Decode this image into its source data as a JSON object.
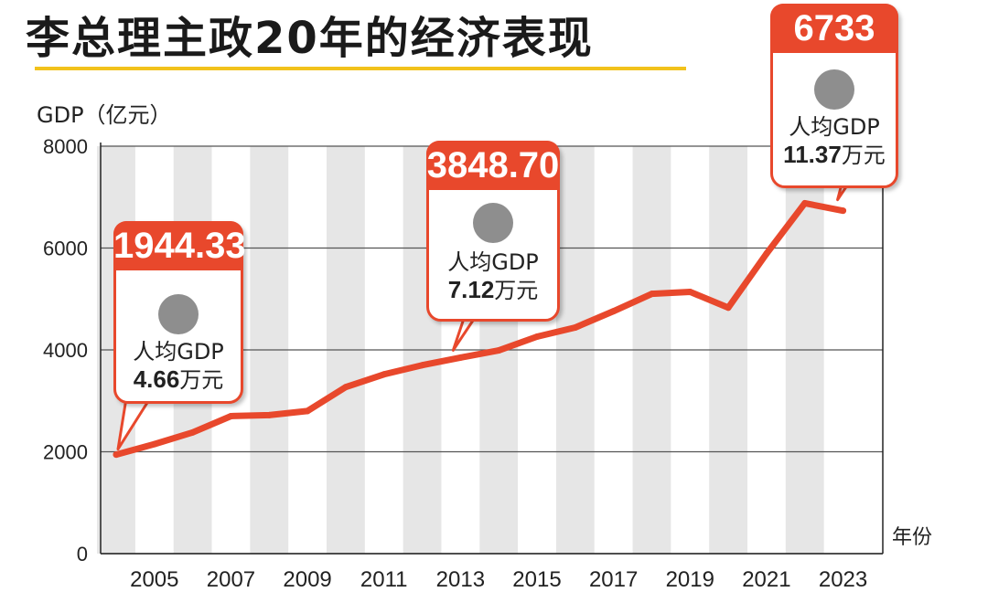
{
  "title": "李总理主政20年的经济表现",
  "colors": {
    "accent": "#e8482c",
    "underline": "#f2c21b",
    "band": "#e6e6e6",
    "grid": "#555555",
    "dot": "#8e8e8e"
  },
  "chart_data": {
    "type": "line",
    "ylabel": "GDP（亿元）",
    "xunit": "年份",
    "ylim": [
      0,
      8000
    ],
    "yticks": [
      0,
      2000,
      4000,
      6000,
      8000
    ],
    "xticks": [
      2005,
      2007,
      2009,
      2011,
      2013,
      2015,
      2017,
      2019,
      2021,
      2023
    ],
    "grid": "horizontal",
    "series": [
      {
        "x": [
          2004,
          2005,
          2006,
          2007,
          2008,
          2009,
          2010,
          2011,
          2012,
          2013,
          2014,
          2015,
          2016,
          2017,
          2018,
          2019,
          2020,
          2021,
          2022,
          2023
        ],
        "values": [
          1944.33,
          2150,
          2380,
          2700,
          2720,
          2800,
          3270,
          3520,
          3700,
          3848.7,
          3990,
          4260,
          4440,
          4760,
          5100,
          5140,
          4830,
          5890,
          6880,
          6733
        ]
      }
    ],
    "annotations": [
      {
        "year": 2004,
        "value_label": "1944.33",
        "label": "人均GDP",
        "per_capita": "4.66",
        "unit": "万元"
      },
      {
        "year": 2013,
        "value_label": "3848.70",
        "label": "人均GDP",
        "per_capita": "7.12",
        "unit": "万元"
      },
      {
        "year": 2023,
        "value_label": "6733",
        "label": "人均GDP",
        "per_capita": "11.37",
        "unit": "万元"
      }
    ]
  }
}
